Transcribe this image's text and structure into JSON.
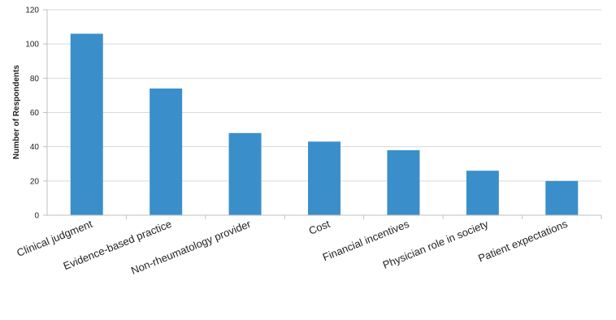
{
  "chart_data": {
    "type": "bar",
    "categories": [
      "Clinical judgment",
      "Evidence-based practice",
      "Non-rheumatology provider",
      "Cost",
      "Financial incentives",
      "Physician role in society",
      "Patient expectations"
    ],
    "values": [
      106,
      74,
      48,
      43,
      38,
      26,
      20
    ],
    "title": "",
    "xlabel": "",
    "ylabel": "Number of Respondents",
    "ylim": [
      0,
      120
    ],
    "yticks": [
      0,
      20,
      40,
      60,
      80,
      100,
      120
    ],
    "grid": true,
    "legend": "none",
    "bar_color": "#3a8fcb"
  }
}
